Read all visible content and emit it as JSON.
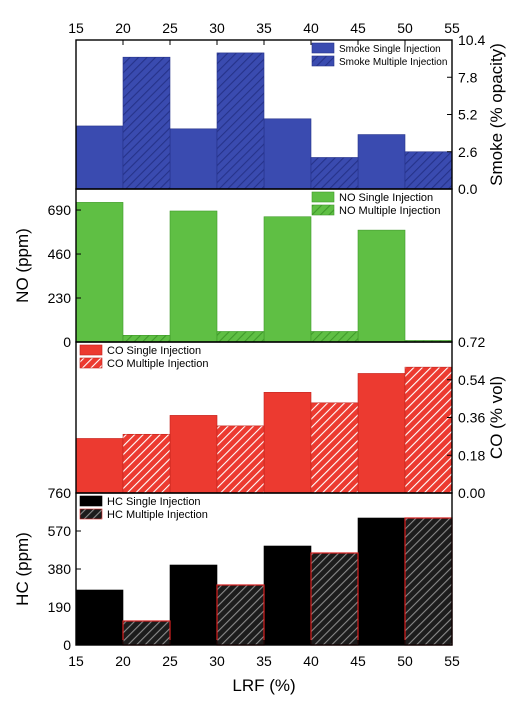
{
  "chart_data": [
    {
      "type": "bar",
      "id": "smoke",
      "ylabel": "Smoke (% opacity)",
      "ylim": [
        0,
        10.4
      ],
      "yticks": [
        "0.0",
        "2.6",
        "5.2",
        "7.8",
        "10.4"
      ],
      "tick_values": [
        0,
        2.6,
        5.2,
        7.8,
        10.4
      ],
      "y_axis_side": "right",
      "legend_position": "top-right",
      "colors": {
        "single": "#3a4bb0",
        "multiple": "#3a4bb0",
        "hatch": "#26338a",
        "edge": "#26338a"
      },
      "series": [
        {
          "name": "Smoke Single Injection",
          "values": [
            4.4,
            4.2,
            4.9,
            3.8
          ]
        },
        {
          "name": "Smoke Multiple Injection",
          "values": [
            9.2,
            9.5,
            2.2,
            2.6
          ]
        }
      ]
    },
    {
      "type": "bar",
      "id": "no",
      "ylabel": "NO (ppm)",
      "ylim": [
        0,
        800
      ],
      "yticks": [
        "0",
        "230",
        "460",
        "690"
      ],
      "tick_values": [
        0,
        230,
        460,
        690
      ],
      "y_axis_side": "left",
      "legend_position": "top-right",
      "colors": {
        "single": "#5fbf44",
        "multiple": "#5fbf44",
        "hatch": "#3f9a2a",
        "edge": "#3f9a2a"
      },
      "series": [
        {
          "name": "NO Single Injection",
          "values": [
            730,
            685,
            655,
            585
          ]
        },
        {
          "name": "NO Multiple Injection",
          "values": [
            35,
            55,
            55,
            8
          ]
        }
      ]
    },
    {
      "type": "bar",
      "id": "co",
      "ylabel": "CO (% vol)",
      "ylim": [
        0,
        0.72
      ],
      "yticks": [
        "0.00",
        "0.18",
        "0.36",
        "0.54",
        "0.72"
      ],
      "tick_values": [
        0,
        0.18,
        0.36,
        0.54,
        0.72
      ],
      "y_axis_side": "right",
      "legend_position": "top-left",
      "colors": {
        "single": "#ec3a30",
        "multiple": "#ec3a30",
        "hatch": "#ffffff",
        "edge": "#c2221b"
      },
      "series": [
        {
          "name": "CO Single Injection",
          "values": [
            0.26,
            0.37,
            0.48,
            0.57
          ]
        },
        {
          "name": "CO Multiple Injection",
          "values": [
            0.28,
            0.32,
            0.43,
            0.6
          ]
        }
      ]
    },
    {
      "type": "bar",
      "id": "hc",
      "ylabel": "HC (ppm)",
      "ylim": [
        0,
        760
      ],
      "yticks": [
        "0",
        "190",
        "380",
        "570",
        "760"
      ],
      "tick_values": [
        0,
        190,
        380,
        570,
        760
      ],
      "y_axis_side": "left",
      "legend_position": "top-left",
      "colors": {
        "single": "#000000",
        "multiple": "#1c1c1c",
        "hatch": "#8a8a8a",
        "edge": "#d62020"
      },
      "series": [
        {
          "name": "HC Single Injection",
          "values": [
            275,
            400,
            495,
            635
          ]
        },
        {
          "name": "HC Multiple Injection",
          "values": [
            120,
            300,
            460,
            635
          ]
        }
      ]
    }
  ],
  "x_axis": {
    "xlabel": "LRF (%)",
    "xlim": [
      15,
      55
    ],
    "xticks": [
      "15",
      "20",
      "25",
      "30",
      "35",
      "40",
      "45",
      "50",
      "55"
    ],
    "tick_values": [
      15,
      20,
      25,
      30,
      35,
      40,
      45,
      50,
      55
    ],
    "bar_centers_single": [
      17.5,
      27.5,
      37.5,
      47.5
    ],
    "bar_centers_multiple": [
      22.5,
      32.5,
      42.5,
      52.5
    ],
    "bar_width": 5
  }
}
